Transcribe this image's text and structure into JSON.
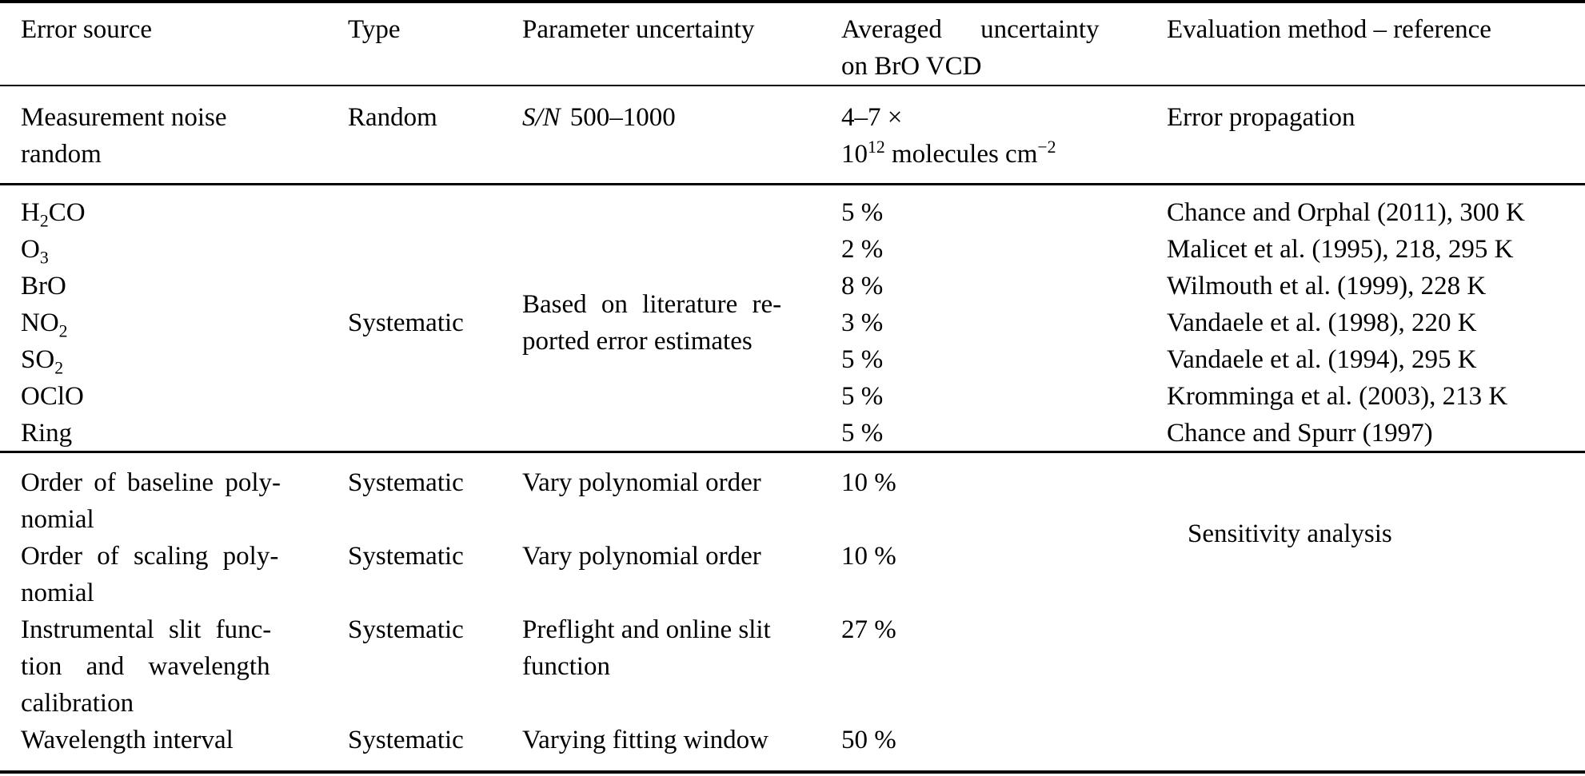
{
  "colors": {
    "text": "#000000",
    "rule": "#000000",
    "background": "#ffffff"
  },
  "table": {
    "header": {
      "error_source": "Error source",
      "type": "Type",
      "parameter_uncertainty": "Parameter uncertainty",
      "averaged_uncertainty_line1": "Averaged uncertainty",
      "averaged_uncertainty_line2": "on BrO VCD",
      "evaluation_method": "Evaluation method – reference"
    },
    "noise_row": {
      "source_line1": "Measurement noise",
      "source_line2": "random",
      "type": "Random",
      "param_symbol": "S/N",
      "param_value": "500–1000",
      "uncertainty_line1": "4–7 ×",
      "uncertainty_base": "10",
      "uncertainty_exponent": "12",
      "uncertainty_unit": "molecules cm",
      "uncertainty_unit_exponent": "−2",
      "method": "Error propagation"
    },
    "cross_sections": {
      "type": "Systematic",
      "param_line1": "Based on literature re-",
      "param_line2": "ported error estimates",
      "species": [
        {
          "pre": "H",
          "sub": "2",
          "post": "CO"
        },
        {
          "pre": "O",
          "sub": "3",
          "post": ""
        },
        {
          "pre": "BrO",
          "sub": "",
          "post": ""
        },
        {
          "pre": "NO",
          "sub": "2",
          "post": ""
        },
        {
          "pre": "SO",
          "sub": "2",
          "post": ""
        },
        {
          "pre": "OClO",
          "sub": "",
          "post": ""
        },
        {
          "pre": "Ring",
          "sub": "",
          "post": ""
        }
      ],
      "uncertainties": [
        "5 %",
        "2 %",
        "8 %",
        "3 %",
        "5 %",
        "5 %",
        "5 %"
      ],
      "references": [
        "Chance and Orphal (2011), 300 K",
        "Malicet et al. (1995), 218, 295 K",
        "Wilmouth et al. (1999), 228 K",
        "Vandaele et al. (1998), 220 K",
        "Vandaele et al. (1994), 295 K",
        "Kromminga et al. (2003), 213 K",
        "Chance and Spurr (1997)"
      ]
    },
    "fit_settings": {
      "method": "Sensitivity analysis",
      "rows": [
        {
          "source_lines": [
            "Order of baseline poly-",
            "nomial"
          ],
          "type": "Systematic",
          "param_lines": [
            "Vary polynomial order"
          ],
          "uncertainty": "10 %"
        },
        {
          "source_lines": [
            "Order of scaling poly-",
            "nomial"
          ],
          "type": "Systematic",
          "param_lines": [
            "Vary polynomial order"
          ],
          "uncertainty": "10 %"
        },
        {
          "source_lines": [
            "Instrumental slit func-",
            "tion and wavelength",
            "calibration"
          ],
          "type": "Systematic",
          "param_lines": [
            "Preflight and online slit",
            "function"
          ],
          "uncertainty": "27 %"
        },
        {
          "source_lines": [
            "Wavelength interval"
          ],
          "type": "Systematic",
          "param_lines": [
            "Varying fitting window"
          ],
          "uncertainty": "50 %"
        }
      ]
    }
  }
}
